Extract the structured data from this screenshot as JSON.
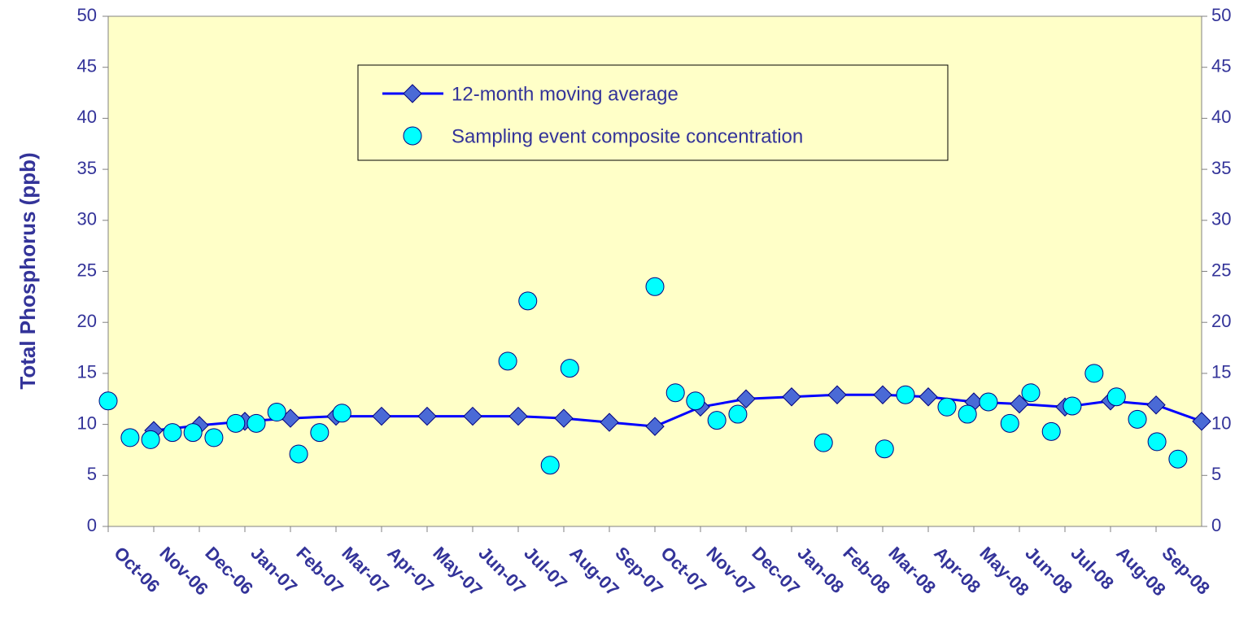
{
  "chart_data": {
    "type": "line",
    "y_label": "Total Phosphorus (ppb)",
    "xlim": [
      0,
      24
    ],
    "xticks": [
      {
        "value": 0,
        "label": "Oct-06"
      },
      {
        "value": 1,
        "label": "Nov-06"
      },
      {
        "value": 2,
        "label": "Dec-06"
      },
      {
        "value": 3,
        "label": "Jan-07"
      },
      {
        "value": 4,
        "label": "Feb-07"
      },
      {
        "value": 5,
        "label": "Mar-07"
      },
      {
        "value": 6,
        "label": "Apr-07"
      },
      {
        "value": 7,
        "label": "May-07"
      },
      {
        "value": 8,
        "label": "Jun-07"
      },
      {
        "value": 9,
        "label": "Jul-07"
      },
      {
        "value": 10,
        "label": "Aug-07"
      },
      {
        "value": 11,
        "label": "Sep-07"
      },
      {
        "value": 12,
        "label": "Oct-07"
      },
      {
        "value": 13,
        "label": "Nov-07"
      },
      {
        "value": 14,
        "label": "Dec-07"
      },
      {
        "value": 15,
        "label": "Jan-08"
      },
      {
        "value": 16,
        "label": "Feb-08"
      },
      {
        "value": 17,
        "label": "Mar-08"
      },
      {
        "value": 18,
        "label": "Apr-08"
      },
      {
        "value": 19,
        "label": "May-08"
      },
      {
        "value": 20,
        "label": "Jun-08"
      },
      {
        "value": 21,
        "label": "Jul-08"
      },
      {
        "value": 22,
        "label": "Aug-08"
      },
      {
        "value": 23,
        "label": "Sep-08"
      }
    ],
    "ylim": [
      0,
      50
    ],
    "yticks": [
      0,
      5,
      10,
      15,
      20,
      25,
      30,
      35,
      40,
      45,
      50
    ],
    "y2lim": [
      0,
      50
    ],
    "y2ticks": [
      0,
      5,
      10,
      15,
      20,
      25,
      30,
      35,
      40,
      45,
      50
    ],
    "legend": "upper center",
    "background": "#ffffc8",
    "series": [
      {
        "name": "12-month moving average",
        "type": "line",
        "color": "#0000ff",
        "marker_color": "#4a6ad6",
        "x": [
          1,
          2,
          3,
          4,
          5,
          6,
          7,
          8,
          9,
          10,
          11,
          12,
          13,
          14,
          15,
          16,
          17,
          18,
          19,
          20,
          21,
          22,
          23,
          24
        ],
        "values": [
          9.4,
          9.9,
          10.3,
          10.6,
          10.8,
          10.8,
          10.8,
          10.8,
          10.8,
          10.6,
          10.2,
          9.8,
          11.7,
          12.5,
          12.7,
          12.9,
          12.9,
          12.7,
          12.2,
          12.0,
          11.7,
          12.3,
          11.9,
          10.3
        ]
      },
      {
        "name": "Sampling event composite concentration",
        "type": "scatter",
        "color": "#00ffff",
        "x": [
          0,
          0.48,
          0.93,
          1.41,
          1.86,
          2.32,
          2.8,
          3.25,
          3.7,
          4.18,
          4.64,
          5.13,
          8.77,
          9.21,
          9.7,
          10.13,
          12,
          12.45,
          12.89,
          13.36,
          13.82,
          15.7,
          17.04,
          17.5,
          18.41,
          18.86,
          19.32,
          19.79,
          20.25,
          20.7,
          21.16,
          21.64,
          22.13,
          22.59,
          23.02,
          23.48
        ],
        "values": [
          12.3,
          8.7,
          8.5,
          9.2,
          9.2,
          8.7,
          10.1,
          10.1,
          11.2,
          7.1,
          9.2,
          11.1,
          16.2,
          22.1,
          6.0,
          15.5,
          23.5,
          13.1,
          12.3,
          10.4,
          11.0,
          8.2,
          7.6,
          12.9,
          11.7,
          11.0,
          12.2,
          10.1,
          13.1,
          9.3,
          11.8,
          15.0,
          12.7,
          10.5,
          8.3,
          6.6
        ]
      }
    ]
  }
}
